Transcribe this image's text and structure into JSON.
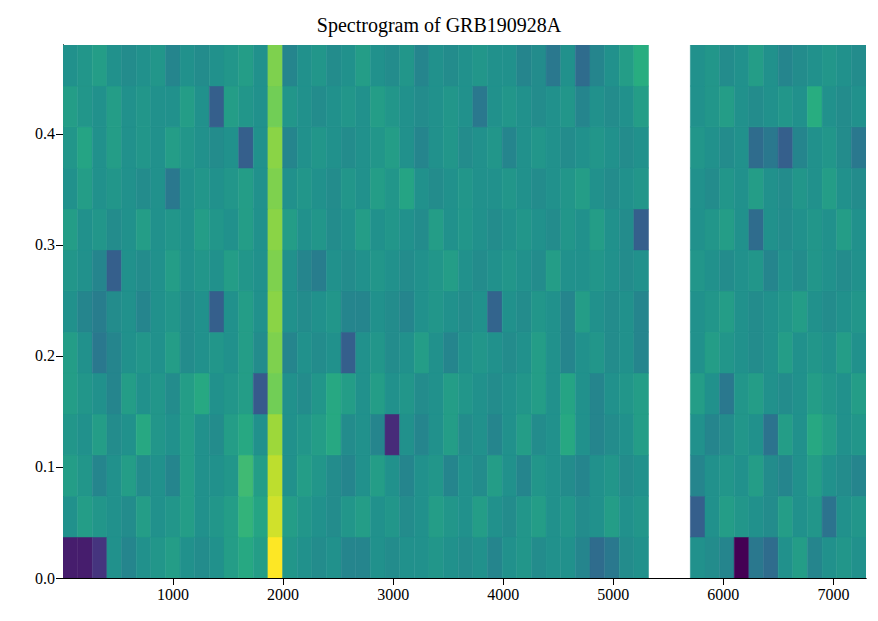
{
  "chart_data": {
    "type": "heatmap",
    "title": "Spectrogram of GRB190928A",
    "color": "viridis",
    "xlim": [
      0,
      7296
    ],
    "ylim": [
      0,
      0.48
    ],
    "xticks": [
      1000,
      2000,
      3000,
      4000,
      5000,
      6000,
      7000
    ],
    "yticks": [
      {
        "value": 0,
        "label": "0.0"
      },
      0.1,
      0.2,
      0.3,
      0.4
    ],
    "zlim": [
      0,
      1
    ],
    "x_edges": [
      0,
      133,
      266,
      399,
      532,
      665,
      798,
      931,
      1064,
      1197,
      1330,
      1463,
      1596,
      1729,
      1862,
      1995,
      2128,
      2261,
      2394,
      2527,
      2660,
      2793,
      2926,
      3059,
      3192,
      3325,
      3458,
      3591,
      3724,
      3857,
      3990,
      4123,
      4256,
      4389,
      4522,
      4655,
      4788,
      4921,
      5054,
      5187,
      5320,
      5700,
      5833,
      5966,
      6099,
      6232,
      6365,
      6498,
      6631,
      6764,
      6897,
      7030,
      7163,
      7296
    ],
    "y_edges": [
      0,
      0.0369,
      0.0738,
      0.1108,
      0.1477,
      0.1846,
      0.2215,
      0.2585,
      0.2954,
      0.3323,
      0.3692,
      0.4062,
      0.4431,
      0.48
    ],
    "z": [
      [
        0.08,
        0.08,
        0.15,
        0.5,
        0.45,
        0.5,
        0.52,
        0.55,
        0.5,
        0.48,
        0.5,
        0.55,
        0.6,
        0.55,
        1.0,
        0.52,
        0.5,
        0.48,
        0.5,
        0.45,
        0.45,
        0.5,
        0.48,
        0.5,
        0.5,
        0.52,
        0.5,
        0.48,
        0.5,
        0.45,
        0.5,
        0.52,
        0.48,
        0.5,
        0.5,
        0.45,
        0.35,
        0.4,
        0.48,
        0.5,
        null,
        0.5,
        0.48,
        0.45,
        0.0,
        0.4,
        0.35,
        0.5,
        0.55,
        0.45,
        0.5,
        0.52,
        0.5
      ],
      [
        0.5,
        0.55,
        0.52,
        0.5,
        0.48,
        0.55,
        0.5,
        0.52,
        0.55,
        0.5,
        0.52,
        0.55,
        0.65,
        0.58,
        0.93,
        0.55,
        0.52,
        0.5,
        0.48,
        0.52,
        0.55,
        0.5,
        0.52,
        0.48,
        0.5,
        0.55,
        0.52,
        0.5,
        0.55,
        0.5,
        0.48,
        0.52,
        0.55,
        0.5,
        0.52,
        0.48,
        0.5,
        0.55,
        0.5,
        0.52,
        null,
        0.3,
        0.5,
        0.55,
        0.52,
        0.5,
        0.48,
        0.55,
        0.5,
        0.52,
        0.38,
        0.5,
        0.52
      ],
      [
        0.55,
        0.52,
        0.45,
        0.5,
        0.55,
        0.48,
        0.5,
        0.45,
        0.55,
        0.5,
        0.5,
        0.52,
        0.68,
        0.55,
        0.9,
        0.5,
        0.55,
        0.52,
        0.48,
        0.45,
        0.5,
        0.55,
        0.5,
        0.45,
        0.5,
        0.52,
        0.45,
        0.5,
        0.48,
        0.55,
        0.5,
        0.45,
        0.52,
        0.5,
        0.48,
        0.45,
        0.5,
        0.52,
        0.48,
        0.5,
        null,
        0.45,
        0.5,
        0.52,
        0.5,
        0.55,
        0.48,
        0.45,
        0.5,
        0.55,
        0.5,
        0.48,
        0.45
      ],
      [
        0.52,
        0.5,
        0.55,
        0.48,
        0.5,
        0.6,
        0.52,
        0.5,
        0.55,
        0.5,
        0.48,
        0.55,
        0.6,
        0.5,
        0.85,
        0.5,
        0.52,
        0.55,
        0.6,
        0.48,
        0.5,
        0.45,
        0.12,
        0.5,
        0.45,
        0.5,
        0.55,
        0.48,
        0.5,
        0.45,
        0.5,
        0.55,
        0.48,
        0.5,
        0.6,
        0.5,
        0.45,
        0.48,
        0.5,
        0.55,
        null,
        0.5,
        0.45,
        0.48,
        0.52,
        0.5,
        0.38,
        0.55,
        0.5,
        0.6,
        0.55,
        0.5,
        0.52
      ],
      [
        0.55,
        0.52,
        0.5,
        0.45,
        0.55,
        0.5,
        0.52,
        0.48,
        0.55,
        0.6,
        0.5,
        0.52,
        0.55,
        0.28,
        0.78,
        0.5,
        0.48,
        0.52,
        0.6,
        0.55,
        0.5,
        0.55,
        0.5,
        0.52,
        0.48,
        0.5,
        0.55,
        0.52,
        0.5,
        0.48,
        0.5,
        0.52,
        0.55,
        0.5,
        0.58,
        0.5,
        0.45,
        0.5,
        0.52,
        0.55,
        null,
        0.55,
        0.5,
        0.4,
        0.52,
        0.55,
        0.5,
        0.48,
        0.5,
        0.55,
        0.52,
        0.5,
        0.55
      ],
      [
        0.55,
        0.5,
        0.4,
        0.45,
        0.5,
        0.52,
        0.5,
        0.55,
        0.48,
        0.5,
        0.52,
        0.5,
        0.55,
        0.48,
        0.8,
        0.45,
        0.5,
        0.48,
        0.5,
        0.3,
        0.5,
        0.52,
        0.48,
        0.5,
        0.55,
        0.5,
        0.45,
        0.5,
        0.52,
        0.5,
        0.48,
        0.5,
        0.55,
        0.5,
        0.45,
        0.5,
        0.52,
        0.48,
        0.5,
        0.45,
        null,
        0.5,
        0.55,
        0.52,
        0.5,
        0.48,
        0.5,
        0.55,
        0.5,
        0.52,
        0.5,
        0.55,
        0.5
      ],
      [
        0.5,
        0.45,
        0.42,
        0.48,
        0.5,
        0.45,
        0.5,
        0.52,
        0.48,
        0.5,
        0.3,
        0.5,
        0.55,
        0.5,
        0.82,
        0.5,
        0.48,
        0.5,
        0.52,
        0.45,
        0.45,
        0.5,
        0.48,
        0.45,
        0.5,
        0.52,
        0.5,
        0.48,
        0.5,
        0.32,
        0.5,
        0.48,
        0.52,
        0.5,
        0.45,
        0.55,
        0.5,
        0.48,
        0.5,
        0.45,
        null,
        0.5,
        0.52,
        0.55,
        0.5,
        0.48,
        0.5,
        0.52,
        0.55,
        0.5,
        0.48,
        0.5,
        0.52
      ],
      [
        0.52,
        0.5,
        0.45,
        0.3,
        0.5,
        0.48,
        0.5,
        0.55,
        0.5,
        0.52,
        0.5,
        0.55,
        0.52,
        0.5,
        0.8,
        0.5,
        0.45,
        0.42,
        0.5,
        0.48,
        0.5,
        0.52,
        0.5,
        0.48,
        0.5,
        0.52,
        0.55,
        0.5,
        0.48,
        0.5,
        0.52,
        0.5,
        0.48,
        0.55,
        0.5,
        0.5,
        0.52,
        0.5,
        0.48,
        0.5,
        null,
        0.52,
        0.5,
        0.48,
        0.5,
        0.52,
        0.45,
        0.5,
        0.48,
        0.52,
        0.5,
        0.48,
        0.5
      ],
      [
        0.55,
        0.5,
        0.52,
        0.48,
        0.5,
        0.55,
        0.5,
        0.52,
        0.5,
        0.55,
        0.52,
        0.5,
        0.55,
        0.5,
        0.82,
        0.55,
        0.5,
        0.52,
        0.48,
        0.5,
        0.55,
        0.5,
        0.52,
        0.5,
        0.48,
        0.55,
        0.5,
        0.52,
        0.5,
        0.48,
        0.5,
        0.52,
        0.5,
        0.48,
        0.52,
        0.5,
        0.55,
        0.5,
        0.48,
        0.3,
        null,
        0.5,
        0.52,
        0.55,
        0.5,
        0.35,
        0.5,
        0.48,
        0.5,
        0.52,
        0.5,
        0.55,
        0.5
      ],
      [
        0.5,
        0.55,
        0.5,
        0.52,
        0.5,
        0.48,
        0.5,
        0.4,
        0.5,
        0.52,
        0.5,
        0.52,
        0.55,
        0.5,
        0.8,
        0.5,
        0.52,
        0.5,
        0.48,
        0.52,
        0.5,
        0.55,
        0.52,
        0.58,
        0.5,
        0.48,
        0.5,
        0.52,
        0.5,
        0.5,
        0.52,
        0.5,
        0.48,
        0.5,
        0.52,
        0.55,
        0.5,
        0.48,
        0.5,
        0.52,
        null,
        0.5,
        0.48,
        0.52,
        0.5,
        0.55,
        0.5,
        0.48,
        0.52,
        0.5,
        0.55,
        0.5,
        0.48
      ],
      [
        0.52,
        0.58,
        0.5,
        0.55,
        0.5,
        0.52,
        0.5,
        0.55,
        0.52,
        0.5,
        0.48,
        0.5,
        0.3,
        0.5,
        0.82,
        0.45,
        0.5,
        0.52,
        0.5,
        0.48,
        0.5,
        0.52,
        0.55,
        0.5,
        0.45,
        0.5,
        0.52,
        0.48,
        0.5,
        0.52,
        0.45,
        0.5,
        0.52,
        0.5,
        0.48,
        0.5,
        0.52,
        0.5,
        0.48,
        0.5,
        null,
        0.52,
        0.5,
        0.48,
        0.5,
        0.35,
        0.4,
        0.3,
        0.45,
        0.5,
        0.52,
        0.48,
        0.4
      ],
      [
        0.55,
        0.52,
        0.5,
        0.55,
        0.5,
        0.52,
        0.5,
        0.5,
        0.55,
        0.5,
        0.3,
        0.55,
        0.52,
        0.5,
        0.78,
        0.52,
        0.5,
        0.48,
        0.5,
        0.52,
        0.5,
        0.55,
        0.52,
        0.5,
        0.48,
        0.5,
        0.52,
        0.5,
        0.4,
        0.5,
        0.52,
        0.5,
        0.48,
        0.5,
        0.52,
        0.45,
        0.5,
        0.48,
        0.5,
        0.55,
        null,
        0.5,
        0.52,
        0.55,
        0.5,
        0.48,
        0.5,
        0.52,
        0.5,
        0.62,
        0.5,
        0.48,
        0.5
      ],
      [
        0.5,
        0.52,
        0.55,
        0.5,
        0.48,
        0.5,
        0.52,
        0.45,
        0.5,
        0.48,
        0.5,
        0.52,
        0.55,
        0.5,
        0.8,
        0.45,
        0.5,
        0.52,
        0.48,
        0.5,
        0.55,
        0.5,
        0.48,
        0.52,
        0.45,
        0.5,
        0.48,
        0.5,
        0.52,
        0.5,
        0.5,
        0.45,
        0.48,
        0.4,
        0.5,
        0.35,
        0.45,
        0.5,
        0.55,
        0.62,
        null,
        0.5,
        0.52,
        0.48,
        0.5,
        0.55,
        0.5,
        0.45,
        0.48,
        0.5,
        0.52,
        0.5,
        0.48
      ]
    ]
  }
}
